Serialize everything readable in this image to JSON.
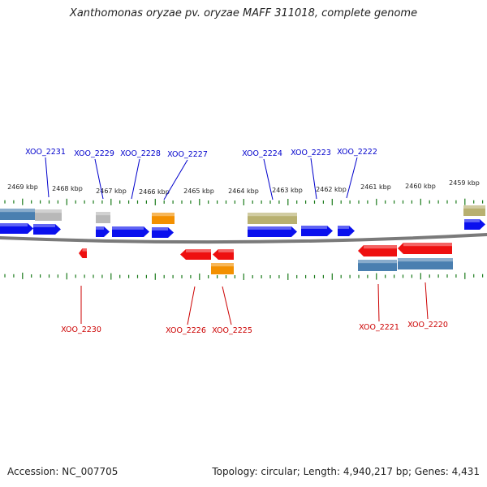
{
  "title": "Xanthomonas oryzae pv. oryzae MAFF 311018, complete genome",
  "footer": {
    "accession": "Accession: NC_007705",
    "summary": "Topology: circular; Length: 4,940,217 bp; Genes: 4,431"
  },
  "colors": {
    "forward_label": "#0000cc",
    "reverse_label": "#cc0000",
    "backbone": "#7a7a7a",
    "tick": "#1a7a1a",
    "blue": "#0a10ee",
    "red": "#ee1010",
    "steel": "#4a7fb0",
    "gray": "#b8b8b8",
    "orange": "#f39000",
    "olive": "#b8b070"
  },
  "scale_labels": [
    "2469 kbp",
    "2468 kbp",
    "2467 kbp",
    "2466 kbp",
    "2465 kbp",
    "2464 kbp",
    "2463 kbp",
    "2462 kbp",
    "2461 kbp",
    "2460 kbp",
    "2459 kbp"
  ],
  "gene_labels": {
    "forward": [
      "XOO_2231",
      "XOO_2229",
      "XOO_2228",
      "XOO_2227",
      "XOO_2224",
      "XOO_2223",
      "XOO_2222"
    ],
    "reverse": [
      "XOO_2230",
      "XOO_2226",
      "XOO_2225",
      "XOO_2221",
      "XOO_2220"
    ]
  }
}
